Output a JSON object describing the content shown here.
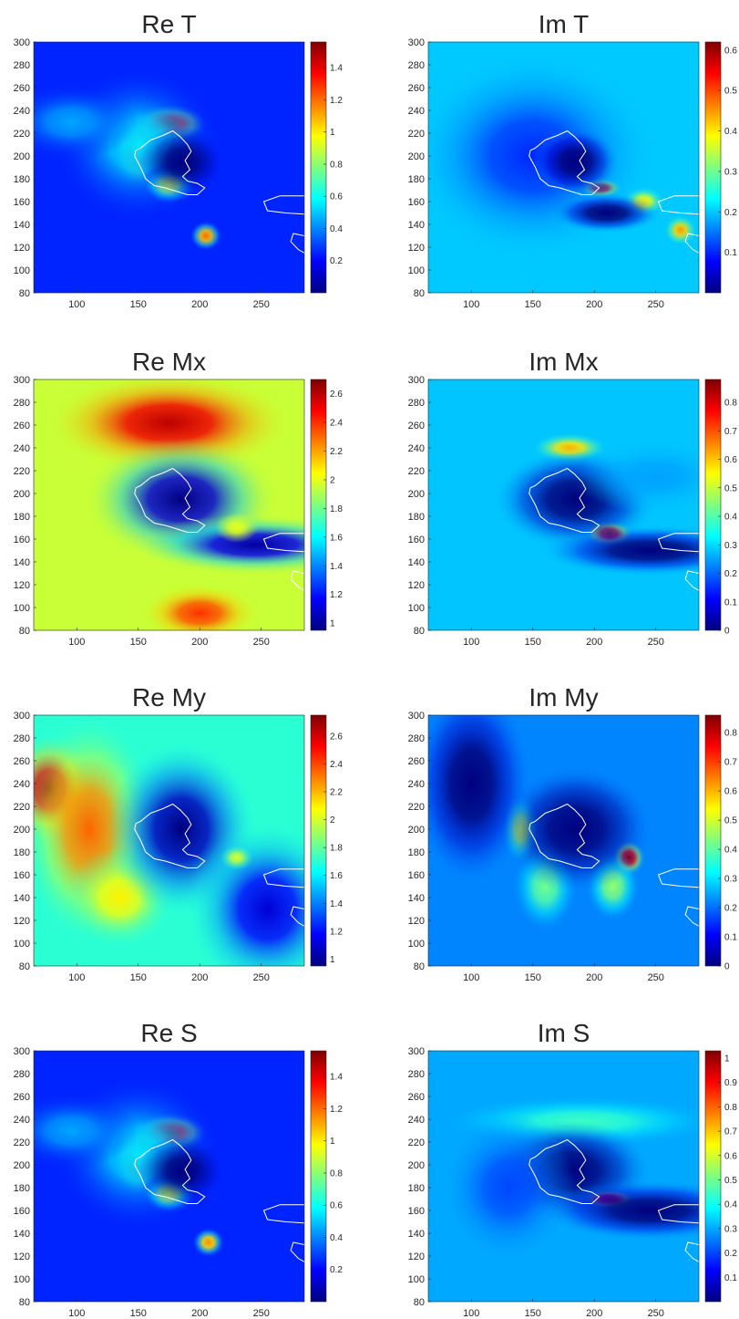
{
  "colormap": [
    "#00007f",
    "#0000ff",
    "#007fff",
    "#00ffff",
    "#7fff7f",
    "#ffff00",
    "#ff7f00",
    "#ff0000",
    "#7f0000"
  ],
  "coast_color": "#ffffff",
  "chart_data": [
    {
      "type": "heatmap",
      "title": "Re T",
      "xlim": [
        65,
        285
      ],
      "ylim": [
        80,
        300
      ],
      "xticks": [
        100,
        150,
        200,
        250
      ],
      "yticks": [
        80,
        100,
        120,
        140,
        160,
        180,
        200,
        220,
        240,
        260,
        280,
        300
      ],
      "colorbar": {
        "min": 0.0,
        "max": 1.56,
        "ticks": [
          0.2,
          0.4,
          0.6,
          0.8,
          1,
          1.2,
          1.4
        ]
      },
      "background": 0.25,
      "features": [
        {
          "x": 175,
          "y": 228,
          "sx": 14,
          "sy": 8,
          "v": 1.52
        },
        {
          "x": 150,
          "y": 205,
          "sx": 9,
          "sy": 14,
          "v": 1.5
        },
        {
          "x": 150,
          "y": 210,
          "sx": 30,
          "sy": 30,
          "v": 0.55
        },
        {
          "x": 205,
          "y": 130,
          "sx": 6,
          "sy": 6,
          "v": 1.2
        },
        {
          "x": 175,
          "y": 175,
          "sx": 10,
          "sy": 8,
          "v": 0.9
        },
        {
          "x": 95,
          "y": 230,
          "sx": 25,
          "sy": 15,
          "v": 0.45
        },
        {
          "x": 185,
          "y": 195,
          "sx": 16,
          "sy": 14,
          "v": -0.2
        }
      ]
    },
    {
      "type": "heatmap",
      "title": "Im T",
      "xlim": [
        65,
        285
      ],
      "ylim": [
        80,
        300
      ],
      "xticks": [
        100,
        150,
        200,
        250
      ],
      "yticks": [
        80,
        100,
        120,
        140,
        160,
        180,
        200,
        220,
        240,
        260,
        280,
        300
      ],
      "colorbar": {
        "min": 0.0,
        "max": 0.62,
        "ticks": [
          0.1,
          0.2,
          0.3,
          0.4,
          0.5,
          0.6
        ]
      },
      "background": 0.2,
      "features": [
        {
          "x": 205,
          "y": 172,
          "sx": 8,
          "sy": 4,
          "v": 0.62
        },
        {
          "x": 270,
          "y": 135,
          "sx": 6,
          "sy": 6,
          "v": 0.45
        },
        {
          "x": 240,
          "y": 160,
          "sx": 8,
          "sy": 6,
          "v": 0.4
        },
        {
          "x": 150,
          "y": 200,
          "sx": 45,
          "sy": 40,
          "v": 0.1
        },
        {
          "x": 185,
          "y": 195,
          "sx": 16,
          "sy": 14,
          "v": -0.15
        },
        {
          "x": 210,
          "y": 150,
          "sx": 20,
          "sy": 8,
          "v": -0.12
        }
      ]
    },
    {
      "type": "heatmap",
      "title": "Re Mx",
      "xlim": [
        65,
        285
      ],
      "ylim": [
        80,
        300
      ],
      "xticks": [
        100,
        150,
        200,
        250
      ],
      "yticks": [
        80,
        100,
        120,
        140,
        160,
        180,
        200,
        220,
        240,
        260,
        280,
        300
      ],
      "colorbar": {
        "min": 0.95,
        "max": 2.7,
        "ticks": [
          1,
          1.2,
          1.4,
          1.6,
          1.8,
          2,
          2.2,
          2.4,
          2.6
        ]
      },
      "background": 1.95,
      "features": [
        {
          "x": 175,
          "y": 262,
          "sx": 45,
          "sy": 20,
          "v": 2.6
        },
        {
          "x": 200,
          "y": 95,
          "sx": 22,
          "sy": 12,
          "v": 2.4
        },
        {
          "x": 185,
          "y": 195,
          "sx": 35,
          "sy": 25,
          "v": 0.95
        },
        {
          "x": 245,
          "y": 155,
          "sx": 45,
          "sy": 12,
          "v": 1.0
        },
        {
          "x": 230,
          "y": 170,
          "sx": 8,
          "sy": 6,
          "v": 2.0
        }
      ]
    },
    {
      "type": "heatmap",
      "title": "Im Mx",
      "xlim": [
        65,
        285
      ],
      "ylim": [
        80,
        300
      ],
      "xticks": [
        100,
        150,
        200,
        250
      ],
      "yticks": [
        80,
        100,
        120,
        140,
        160,
        180,
        200,
        220,
        240,
        260,
        280,
        300
      ],
      "colorbar": {
        "min": 0.0,
        "max": 0.88,
        "ticks": [
          0,
          0.1,
          0.2,
          0.3,
          0.4,
          0.5,
          0.6,
          0.7,
          0.8
        ]
      },
      "background": 0.28,
      "features": [
        {
          "x": 212,
          "y": 165,
          "sx": 9,
          "sy": 5,
          "v": 0.88
        },
        {
          "x": 180,
          "y": 240,
          "sx": 14,
          "sy": 6,
          "v": 0.62
        },
        {
          "x": 185,
          "y": 195,
          "sx": 30,
          "sy": 20,
          "v": -0.2
        },
        {
          "x": 245,
          "y": 150,
          "sx": 40,
          "sy": 10,
          "v": -0.15
        },
        {
          "x": 250,
          "y": 215,
          "sx": 30,
          "sy": 15,
          "v": 0.25
        }
      ]
    },
    {
      "type": "heatmap",
      "title": "Re My",
      "xlim": [
        65,
        285
      ],
      "ylim": [
        80,
        300
      ],
      "xticks": [
        100,
        150,
        200,
        250
      ],
      "yticks": [
        80,
        100,
        120,
        140,
        160,
        180,
        200,
        220,
        240,
        260,
        280,
        300
      ],
      "colorbar": {
        "min": 0.95,
        "max": 2.75,
        "ticks": [
          1,
          1.2,
          1.4,
          1.6,
          1.8,
          2,
          2.2,
          2.4,
          2.6
        ]
      },
      "background": 1.7,
      "features": [
        {
          "x": 78,
          "y": 235,
          "sx": 16,
          "sy": 22,
          "v": 2.7
        },
        {
          "x": 110,
          "y": 200,
          "sx": 25,
          "sy": 45,
          "v": 2.35
        },
        {
          "x": 135,
          "y": 140,
          "sx": 20,
          "sy": 20,
          "v": 2.1
        },
        {
          "x": 185,
          "y": 200,
          "sx": 28,
          "sy": 35,
          "v": 0.95
        },
        {
          "x": 255,
          "y": 130,
          "sx": 30,
          "sy": 35,
          "v": 1.1
        },
        {
          "x": 230,
          "y": 175,
          "sx": 6,
          "sy": 5,
          "v": 2.0
        }
      ]
    },
    {
      "type": "heatmap",
      "title": "Im My",
      "xlim": [
        65,
        285
      ],
      "ylim": [
        80,
        300
      ],
      "xticks": [
        100,
        150,
        200,
        250
      ],
      "yticks": [
        80,
        100,
        120,
        140,
        160,
        180,
        200,
        220,
        240,
        260,
        280,
        300
      ],
      "colorbar": {
        "min": 0.0,
        "max": 0.86,
        "ticks": [
          0,
          0.1,
          0.2,
          0.3,
          0.4,
          0.5,
          0.6,
          0.7,
          0.8
        ]
      },
      "background": 0.22,
      "features": [
        {
          "x": 228,
          "y": 175,
          "sx": 6,
          "sy": 7,
          "v": 0.86
        },
        {
          "x": 140,
          "y": 200,
          "sx": 7,
          "sy": 14,
          "v": 0.5
        },
        {
          "x": 160,
          "y": 150,
          "sx": 12,
          "sy": 18,
          "v": 0.42
        },
        {
          "x": 215,
          "y": 150,
          "sx": 10,
          "sy": 14,
          "v": 0.45
        },
        {
          "x": 185,
          "y": 200,
          "sx": 28,
          "sy": 25,
          "v": -0.2
        },
        {
          "x": 100,
          "y": 240,
          "sx": 22,
          "sy": 40,
          "v": -0.12
        }
      ]
    },
    {
      "type": "heatmap",
      "title": "Re S",
      "xlim": [
        65,
        285
      ],
      "ylim": [
        80,
        300
      ],
      "xticks": [
        100,
        150,
        200,
        250
      ],
      "yticks": [
        80,
        100,
        120,
        140,
        160,
        180,
        200,
        220,
        240,
        260,
        280,
        300
      ],
      "colorbar": {
        "min": 0.0,
        "max": 1.56,
        "ticks": [
          0.2,
          0.4,
          0.6,
          0.8,
          1,
          1.2,
          1.4
        ]
      },
      "background": 0.25,
      "features": [
        {
          "x": 175,
          "y": 228,
          "sx": 14,
          "sy": 8,
          "v": 1.52
        },
        {
          "x": 150,
          "y": 205,
          "sx": 9,
          "sy": 14,
          "v": 1.5
        },
        {
          "x": 150,
          "y": 210,
          "sx": 30,
          "sy": 30,
          "v": 0.55
        },
        {
          "x": 207,
          "y": 132,
          "sx": 6,
          "sy": 6,
          "v": 1.15
        },
        {
          "x": 175,
          "y": 175,
          "sx": 10,
          "sy": 8,
          "v": 0.9
        },
        {
          "x": 95,
          "y": 230,
          "sx": 25,
          "sy": 15,
          "v": 0.45
        },
        {
          "x": 185,
          "y": 195,
          "sx": 16,
          "sy": 14,
          "v": -0.2
        }
      ]
    },
    {
      "type": "heatmap",
      "title": "Im S",
      "xlim": [
        65,
        285
      ],
      "ylim": [
        80,
        300
      ],
      "xticks": [
        100,
        150,
        200,
        250
      ],
      "yticks": [
        80,
        100,
        120,
        140,
        160,
        180,
        200,
        220,
        240,
        260,
        280,
        300
      ],
      "colorbar": {
        "min": 0.0,
        "max": 1.03,
        "ticks": [
          0.1,
          0.2,
          0.3,
          0.4,
          0.5,
          0.6,
          0.7,
          0.8,
          0.9,
          1
        ]
      },
      "background": 0.3,
      "features": [
        {
          "x": 212,
          "y": 170,
          "sx": 10,
          "sy": 4,
          "v": 1.0
        },
        {
          "x": 190,
          "y": 238,
          "sx": 50,
          "sy": 10,
          "v": 0.45
        },
        {
          "x": 180,
          "y": 195,
          "sx": 30,
          "sy": 20,
          "v": -0.25
        },
        {
          "x": 245,
          "y": 160,
          "sx": 40,
          "sy": 12,
          "v": -0.15
        },
        {
          "x": 130,
          "y": 180,
          "sx": 25,
          "sy": 30,
          "v": 0.2
        }
      ]
    }
  ]
}
